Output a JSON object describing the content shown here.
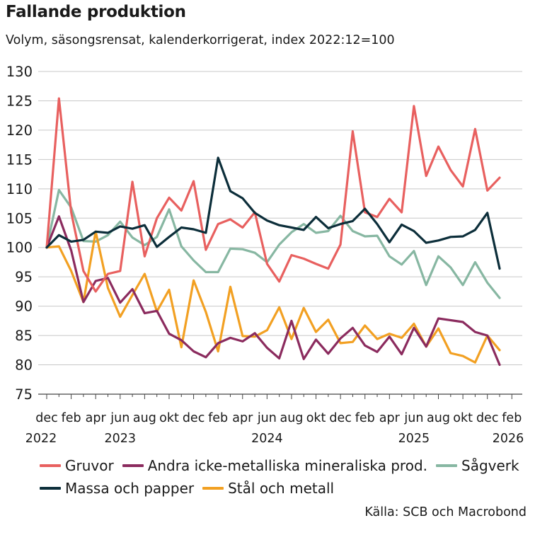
{
  "chart_data": {
    "type": "line",
    "title": "Fallande produktion",
    "subtitle": "Volym, säsongsrensat, kalenderkorrigerat, index 2022:12=100",
    "source": "Källa: SCB och Macrobond",
    "ylim": [
      75,
      130
    ],
    "yticks": [
      75,
      80,
      85,
      90,
      95,
      100,
      105,
      110,
      115,
      120,
      125,
      130
    ],
    "month_labels": [
      "dec",
      "feb",
      "apr",
      "jun",
      "aug",
      "okt",
      "dec",
      "feb",
      "apr",
      "jun",
      "aug",
      "okt",
      "dec",
      "feb",
      "apr",
      "jun",
      "aug",
      "okt",
      "dec",
      "feb"
    ],
    "year_labels": [
      "2022",
      "2023",
      "2024",
      "2025",
      "2026"
    ],
    "series": [
      {
        "name": "Gruvor",
        "color": "#e8605f",
        "values": [
          100,
          125.4,
          106,
          96,
          92.5,
          95.5,
          96,
          111.2,
          98.5,
          105,
          108.5,
          106.3,
          111.3,
          99.6,
          104,
          104.8,
          103.4,
          106,
          97.2,
          94.2,
          98.7,
          98.1,
          97.2,
          96.4,
          100.5,
          119.8,
          106,
          105.2,
          108.3,
          106,
          124.1,
          112.2,
          117.2,
          113.2,
          110.4,
          120.2,
          109.7,
          111.9
        ]
      },
      {
        "name": "Andra icke-metalliska mineraliska prod.",
        "color": "#8b2b5e",
        "values": [
          100,
          105.3,
          99.5,
          90.7,
          94.3,
          94.8,
          90.6,
          92.9,
          88.8,
          89.2,
          85.3,
          84.2,
          82.3,
          81.3,
          83.7,
          84.6,
          84,
          85.4,
          82.9,
          81.1,
          87.5,
          81,
          84.3,
          81.9,
          84.5,
          86.3,
          83.3,
          82.2,
          84.8,
          81.8,
          86.3,
          83.1,
          87.9,
          87.6,
          87.3,
          85.6,
          85,
          80
        ]
      },
      {
        "name": "Sågverk",
        "color": "#87b7a2",
        "values": [
          100,
          109.8,
          106.8,
          101.1,
          101,
          102.1,
          104.4,
          101.7,
          100.4,
          101.8,
          106.5,
          100.2,
          97.8,
          95.8,
          95.8,
          99.8,
          99.7,
          99.1,
          97.5,
          100.5,
          102.6,
          104,
          102.5,
          102.8,
          105.4,
          102.8,
          101.9,
          102,
          98.5,
          97.1,
          99.4,
          93.6,
          98.5,
          96.6,
          93.6,
          97.5,
          94,
          91.4
        ]
      },
      {
        "name": "Massa och papper",
        "color": "#0c2e3a",
        "values": [
          100,
          102.1,
          101,
          101.3,
          102.7,
          102.5,
          103.6,
          103.2,
          103.8,
          100.1,
          101.8,
          103.4,
          103.1,
          102.5,
          115.3,
          109.6,
          108.4,
          105.9,
          104.6,
          103.8,
          103.4,
          103,
          105.2,
          103.3,
          104,
          104.5,
          106.6,
          104,
          100.9,
          103.9,
          102.8,
          100.8,
          101.2,
          101.8,
          101.9,
          103,
          105.9,
          96.4
        ]
      },
      {
        "name": "Stål och metall",
        "color": "#f2a022",
        "values": [
          100,
          100.2,
          96,
          90.7,
          102.7,
          93.1,
          88.2,
          91.9,
          95.5,
          89.1,
          92.8,
          83,
          94.4,
          89,
          82.3,
          93.3,
          84.9,
          84.8,
          85.9,
          89.8,
          84.4,
          89.7,
          85.6,
          87.7,
          83.7,
          83.9,
          86.7,
          84.4,
          85.3,
          84.6,
          87,
          83.1,
          86.2,
          82,
          81.5,
          80.4,
          85,
          82.5
        ]
      }
    ]
  }
}
